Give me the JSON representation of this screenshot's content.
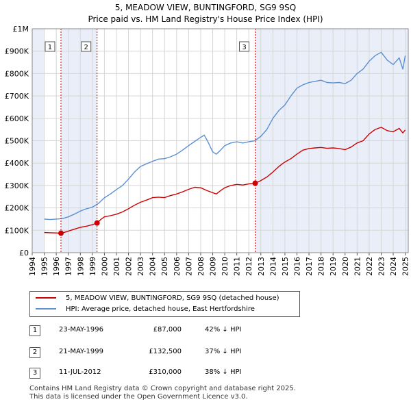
{
  "title": "5, MEADOW VIEW, BUNTINGFORD, SG9 9SQ",
  "subtitle": "Price paid vs. HM Land Registry's House Price Index (HPI)",
  "chart_data": {
    "type": "line",
    "xlim": [
      1994,
      2025.25
    ],
    "ylim": [
      0,
      1000000
    ],
    "y_ticks": [
      {
        "value": 0,
        "label": "£0"
      },
      {
        "value": 100000,
        "label": "£100K"
      },
      {
        "value": 200000,
        "label": "£200K"
      },
      {
        "value": 300000,
        "label": "£300K"
      },
      {
        "value": 400000,
        "label": "£400K"
      },
      {
        "value": 500000,
        "label": "£500K"
      },
      {
        "value": 600000,
        "label": "£600K"
      },
      {
        "value": 700000,
        "label": "£700K"
      },
      {
        "value": 800000,
        "label": "£800K"
      },
      {
        "value": 900000,
        "label": "£900K"
      },
      {
        "value": 1000000,
        "label": "£1M"
      }
    ],
    "x_ticks": [
      "1994",
      "1995",
      "1996",
      "1997",
      "1998",
      "1999",
      "2000",
      "2001",
      "2002",
      "2003",
      "2004",
      "2005",
      "2006",
      "2007",
      "2008",
      "2009",
      "2010",
      "2011",
      "2012",
      "2013",
      "2014",
      "2015",
      "2016",
      "2017",
      "2018",
      "2019",
      "2020",
      "2021",
      "2022",
      "2023",
      "2024",
      "2025"
    ],
    "shaded_spans": [
      [
        1994,
        1995
      ],
      [
        2025,
        2025.25
      ]
    ],
    "series": [
      {
        "name": "5, MEADOW VIEW, BUNTINGFORD, SG9 9SQ (detached house)",
        "color": "#cc0000",
        "x": [
          1995.0,
          1995.5,
          1996.0,
          1996.39,
          1996.7,
          1997.0,
          1997.5,
          1998.0,
          1998.5,
          1999.0,
          1999.39,
          1999.7,
          2000.0,
          2000.5,
          2001.0,
          2001.5,
          2002.0,
          2002.5,
          2003.0,
          2003.5,
          2004.0,
          2004.5,
          2005.0,
          2005.5,
          2006.0,
          2006.5,
          2007.0,
          2007.5,
          2008.0,
          2008.5,
          2009.0,
          2009.3,
          2009.6,
          2010.0,
          2010.5,
          2011.0,
          2011.5,
          2012.0,
          2012.53,
          2013.0,
          2013.5,
          2014.0,
          2014.5,
          2015.0,
          2015.5,
          2016.0,
          2016.5,
          2017.0,
          2017.5,
          2018.0,
          2018.5,
          2019.0,
          2019.5,
          2020.0,
          2020.5,
          2021.0,
          2021.5,
          2022.0,
          2022.5,
          2023.0,
          2023.5,
          2024.0,
          2024.5,
          2024.8,
          2025.0
        ],
        "y": [
          90000,
          89000,
          88000,
          87000,
          91000,
          96000,
          105000,
          113000,
          118000,
          125000,
          132500,
          148000,
          160000,
          165000,
          172000,
          182000,
          196000,
          212000,
          225000,
          235000,
          246000,
          248000,
          246000,
          255000,
          262000,
          272000,
          283000,
          292000,
          290000,
          278000,
          268000,
          262000,
          275000,
          290000,
          300000,
          305000,
          302000,
          307000,
          310000,
          322000,
          338000,
          360000,
          385000,
          405000,
          420000,
          440000,
          458000,
          465000,
          468000,
          470000,
          466000,
          468000,
          465000,
          460000,
          472000,
          490000,
          500000,
          530000,
          550000,
          560000,
          545000,
          540000,
          555000,
          535000,
          548000
        ]
      },
      {
        "name": "HPI: Average price, detached house, East Hertfordshire",
        "color": "#5b8fd0",
        "x": [
          1995.0,
          1995.5,
          1996.0,
          1996.5,
          1997.0,
          1997.5,
          1998.0,
          1998.5,
          1999.0,
          1999.5,
          2000.0,
          2000.5,
          2001.0,
          2001.5,
          2002.0,
          2002.5,
          2003.0,
          2003.5,
          2004.0,
          2004.5,
          2005.0,
          2005.5,
          2006.0,
          2006.5,
          2007.0,
          2007.5,
          2008.0,
          2008.3,
          2008.6,
          2009.0,
          2009.3,
          2009.6,
          2010.0,
          2010.5,
          2011.0,
          2011.5,
          2012.0,
          2012.5,
          2013.0,
          2013.5,
          2014.0,
          2014.5,
          2015.0,
          2015.5,
          2016.0,
          2016.5,
          2017.0,
          2017.5,
          2018.0,
          2018.5,
          2019.0,
          2019.5,
          2020.0,
          2020.5,
          2021.0,
          2021.5,
          2022.0,
          2022.5,
          2023.0,
          2023.5,
          2024.0,
          2024.5,
          2024.8,
          2025.0
        ],
        "y": [
          150000,
          148000,
          150000,
          152000,
          160000,
          172000,
          186000,
          196000,
          203000,
          220000,
          245000,
          262000,
          282000,
          300000,
          328000,
          360000,
          385000,
          397000,
          408000,
          418000,
          420000,
          428000,
          440000,
          458000,
          478000,
          497000,
          515000,
          525000,
          495000,
          450000,
          440000,
          455000,
          478000,
          490000,
          495000,
          490000,
          495000,
          500000,
          520000,
          550000,
          600000,
          635000,
          660000,
          700000,
          735000,
          750000,
          760000,
          765000,
          770000,
          760000,
          758000,
          760000,
          755000,
          770000,
          800000,
          820000,
          855000,
          880000,
          895000,
          860000,
          840000,
          870000,
          820000,
          880000
        ]
      }
    ],
    "sales": [
      {
        "label": "1",
        "x": 1996.39,
        "price": 87000
      },
      {
        "label": "2",
        "x": 1999.39,
        "price": 132500
      },
      {
        "label": "3",
        "x": 2012.53,
        "price": 310000
      }
    ]
  },
  "legend": {
    "property": "5, MEADOW VIEW, BUNTINGFORD, SG9 9SQ (detached house)",
    "hpi": "HPI: Average price, detached house, East Hertfordshire",
    "property_color": "#cc0000",
    "hpi_color": "#5b8fd0"
  },
  "transactions": [
    {
      "num": "1",
      "date": "23-MAY-1996",
      "price": "£87,000",
      "hpi": "42% ↓ HPI"
    },
    {
      "num": "2",
      "date": "21-MAY-1999",
      "price": "£132,500",
      "hpi": "37% ↓ HPI"
    },
    {
      "num": "3",
      "date": "11-JUL-2012",
      "price": "£310,000",
      "hpi": "38% ↓ HPI"
    }
  ],
  "footer": {
    "line1": "Contains HM Land Registry data © Crown copyright and database right 2025.",
    "line2": "This data is licensed under the Open Government Licence v3.0."
  }
}
